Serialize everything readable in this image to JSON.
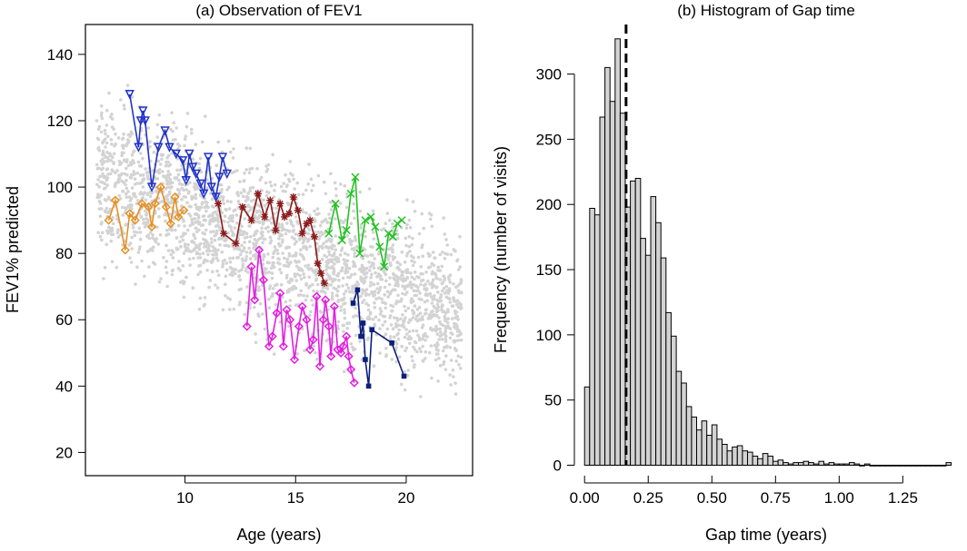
{
  "chart_data": [
    {
      "type": "scatter",
      "title": "(a) Observation of FEV1",
      "xlabel": "Age (years)",
      "ylabel": "FEV1% predicted",
      "xlim": [
        5.5,
        23
      ],
      "ylim": [
        13,
        149
      ],
      "xticks": [
        10,
        15,
        20
      ],
      "yticks": [
        20,
        40,
        60,
        80,
        100,
        120,
        140
      ],
      "background_points": {
        "color": "#d3d3d3",
        "description_count": 2500,
        "age_range": [
          6,
          22.5
        ],
        "seed": 7
      },
      "series": [
        {
          "name": "subject-orange",
          "color": "#e69022",
          "marker": "diamond",
          "x": [
            6.55,
            6.85,
            7.3,
            7.5,
            7.75,
            8.05,
            8.35,
            8.5,
            8.65,
            8.9,
            9.15,
            9.35,
            9.55,
            9.7,
            9.95
          ],
          "y": [
            90,
            96,
            81,
            92,
            90,
            95,
            94,
            88,
            95,
            100,
            94,
            89,
            97,
            91,
            93
          ]
        },
        {
          "name": "subject-blue",
          "color": "#2233c8",
          "marker": "triangle-down",
          "x": [
            7.5,
            7.9,
            8.0,
            8.1,
            8.2,
            8.5,
            8.8,
            9.1,
            9.3,
            9.6,
            9.9,
            10.05,
            10.2,
            10.35,
            10.5,
            10.7,
            10.85,
            11.05,
            11.2,
            11.4,
            11.55,
            11.7,
            11.9
          ],
          "y": [
            128,
            112,
            120,
            123,
            120,
            100,
            112,
            117,
            112,
            110,
            108,
            102,
            110,
            106,
            104,
            101,
            98,
            109,
            100,
            97,
            103,
            109,
            104
          ]
        },
        {
          "name": "subject-darkred",
          "color": "#8b1a1a",
          "marker": "asterisk",
          "x": [
            11.5,
            11.75,
            12.3,
            12.6,
            13.0,
            13.3,
            13.6,
            13.85,
            14.1,
            14.3,
            14.5,
            14.7,
            14.9,
            15.1,
            15.3,
            15.5,
            15.65,
            15.85,
            16.0,
            16.15,
            16.3
          ],
          "y": [
            95,
            86,
            83,
            94,
            90,
            98,
            91,
            96,
            87,
            95,
            91,
            92,
            97,
            93,
            86,
            89,
            90,
            85,
            77,
            74,
            71
          ]
        },
        {
          "name": "subject-magenta",
          "color": "#e11fe0",
          "marker": "diamond",
          "x": [
            12.8,
            13.0,
            13.15,
            13.35,
            13.55,
            13.8,
            13.95,
            14.15,
            14.3,
            14.45,
            14.6,
            14.75,
            14.95,
            15.15,
            15.3,
            15.5,
            15.65,
            15.8,
            15.95,
            16.1,
            16.25,
            16.35,
            16.5,
            16.6,
            16.75,
            16.9,
            17.05,
            17.15,
            17.3,
            17.4,
            17.5,
            17.65
          ],
          "y": [
            58,
            76,
            66,
            81,
            72,
            52,
            55,
            62,
            68,
            52,
            63,
            60,
            48,
            58,
            64,
            60,
            51,
            54,
            67,
            46,
            60,
            66,
            58,
            49,
            64,
            51,
            50,
            52,
            55,
            49,
            45,
            41
          ]
        },
        {
          "name": "subject-green",
          "color": "#22c222",
          "marker": "cross",
          "x": [
            16.5,
            16.8,
            17.1,
            17.3,
            17.5,
            17.7,
            17.9,
            18.15,
            18.4,
            18.6,
            18.8,
            19.0,
            19.2,
            19.4,
            19.6,
            19.8
          ],
          "y": [
            86,
            95,
            84,
            87,
            98,
            103,
            80,
            90,
            91,
            88,
            82,
            76,
            86,
            85,
            89,
            90
          ]
        },
        {
          "name": "subject-navy",
          "color": "#0c1f7c",
          "marker": "square",
          "x": [
            17.6,
            17.8,
            17.95,
            18.05,
            18.15,
            18.3,
            18.45,
            19.35,
            19.9
          ],
          "y": [
            65,
            69,
            55,
            59,
            48,
            40,
            57,
            53,
            43
          ]
        }
      ]
    },
    {
      "type": "bar",
      "title": "(b) Histogram of Gap time",
      "xlabel": "Gap time (years)",
      "ylabel": "Frequency (number of visits)",
      "xlim": [
        -0.04,
        1.47
      ],
      "ylim": [
        -8,
        338
      ],
      "xticks": [
        "0.00",
        "0.25",
        "0.50",
        "0.75",
        "1.00",
        "1.25"
      ],
      "yticks": [
        0,
        50,
        100,
        150,
        200,
        250,
        300
      ],
      "bin_width": 0.02,
      "bin_start": 0.0,
      "values": [
        60,
        197,
        192,
        267,
        305,
        279,
        327,
        270,
        198,
        218,
        220,
        174,
        161,
        206,
        186,
        159,
        117,
        99,
        72,
        63,
        45,
        37,
        27,
        34,
        23,
        31,
        20,
        16,
        11,
        14,
        15,
        11,
        10,
        7,
        5,
        9,
        7,
        3,
        4,
        2,
        1,
        2,
        2,
        3,
        2,
        1,
        3,
        1,
        2,
        1,
        1,
        1,
        2,
        1,
        0,
        1,
        0,
        0,
        0,
        0,
        0,
        0,
        0,
        0,
        0,
        0,
        0,
        0,
        0,
        0,
        0,
        2
      ],
      "vline": {
        "x": 0.163,
        "style": "dashed"
      },
      "bar_color": "#d3d3d3"
    }
  ]
}
